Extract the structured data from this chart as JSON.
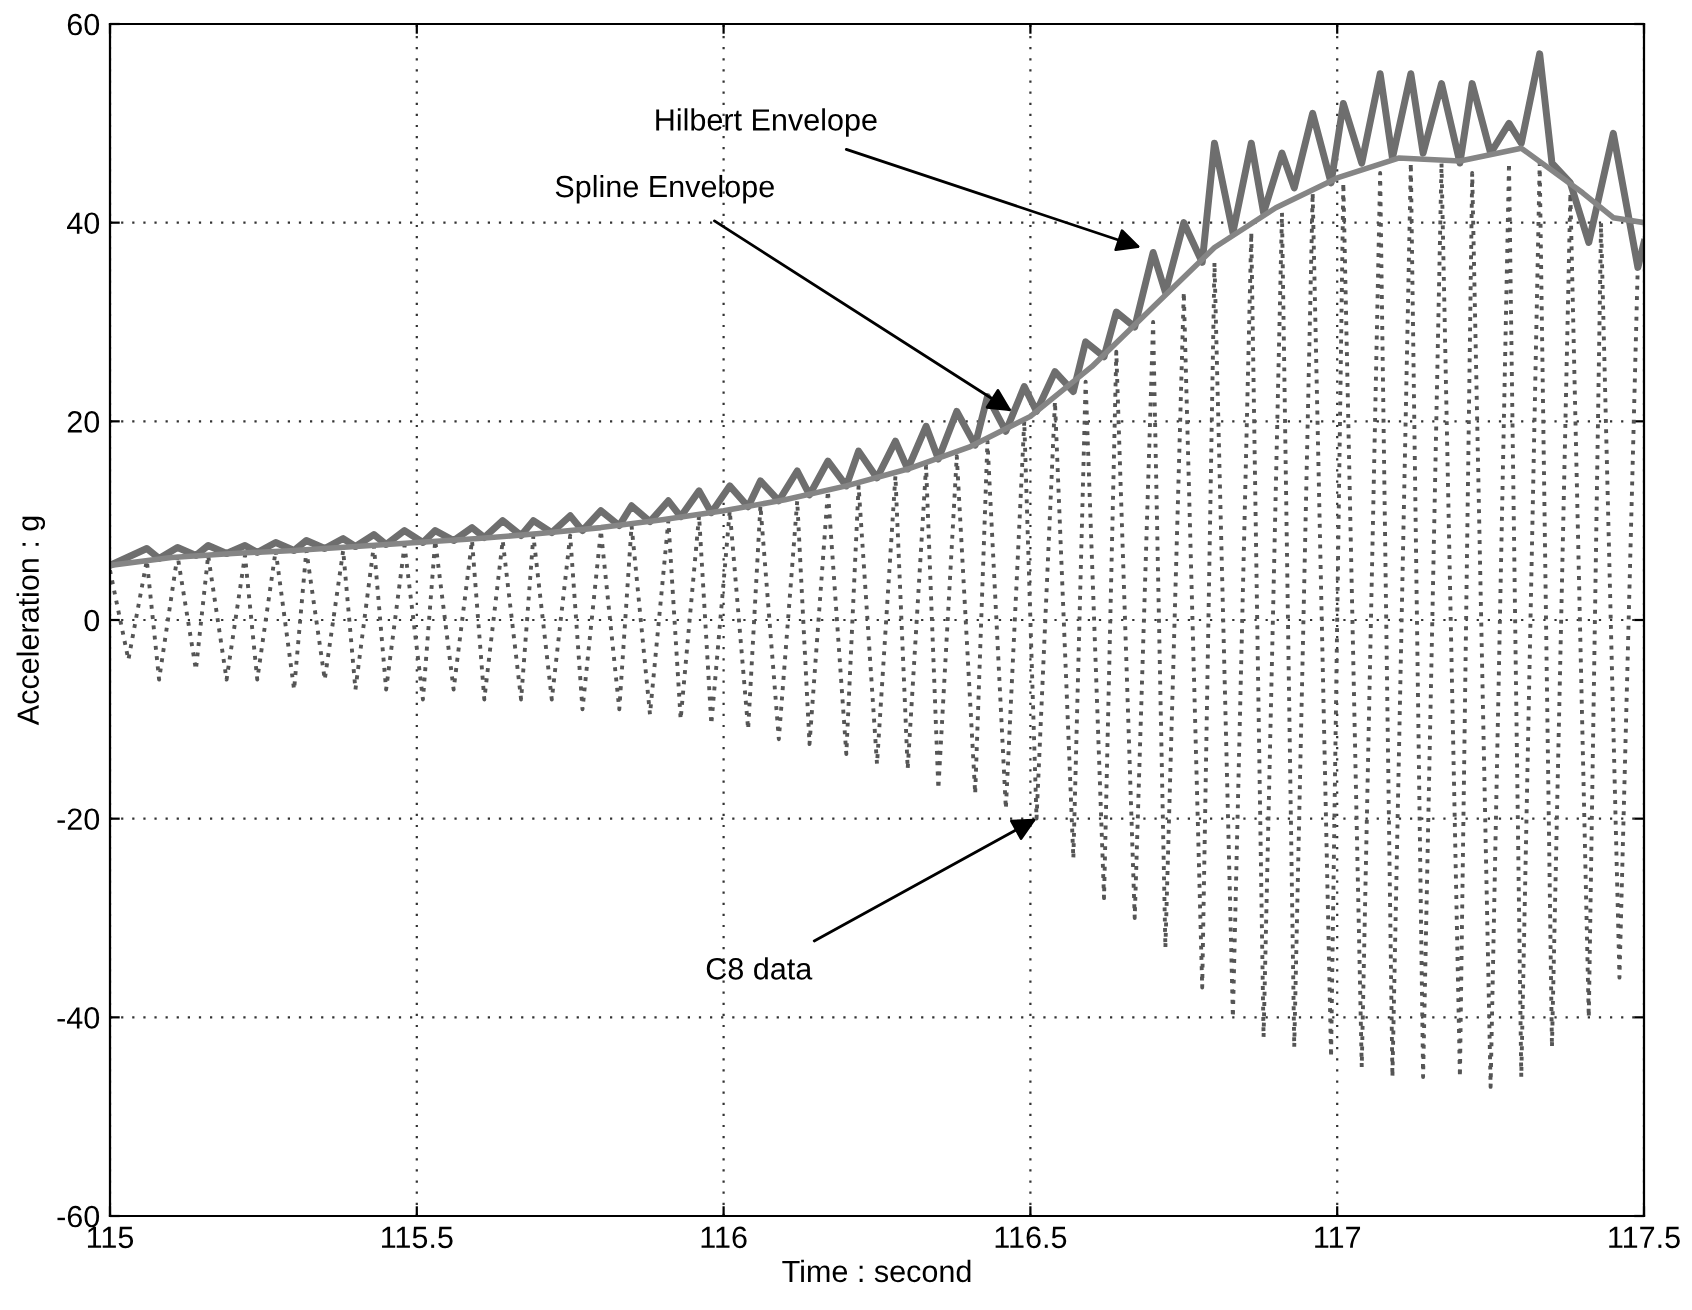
{
  "chart_data": {
    "type": "line",
    "xlabel": "Time : second",
    "ylabel": "Acceleration : g",
    "xlim": [
      115,
      117.5
    ],
    "ylim": [
      -60,
      60
    ],
    "xticks": [
      115,
      115.5,
      116,
      116.5,
      117,
      117.5
    ],
    "yticks": [
      -60,
      -40,
      -20,
      0,
      20,
      40,
      60
    ],
    "grid": true,
    "legend": false,
    "marker": "none",
    "series": [
      {
        "color": "#555555",
        "line_style": "dotted",
        "x": [
          115.0,
          115.03,
          115.06,
          115.08,
          115.11,
          115.14,
          115.16,
          115.19,
          115.22,
          115.24,
          115.27,
          115.3,
          115.32,
          115.35,
          115.38,
          115.4,
          115.43,
          115.45,
          115.48,
          115.51,
          115.53,
          115.56,
          115.59,
          115.61,
          115.64,
          115.67,
          115.69,
          115.72,
          115.75,
          115.77,
          115.8,
          115.83,
          115.85,
          115.88,
          115.91,
          115.93,
          115.96,
          115.98,
          116.01,
          116.04,
          116.06,
          116.09,
          116.12,
          116.14,
          116.17,
          116.2,
          116.22,
          116.25,
          116.28,
          116.3,
          116.33,
          116.35,
          116.38,
          116.41,
          116.43,
          116.46,
          116.49,
          116.51,
          116.54,
          116.57,
          116.59,
          116.62,
          116.64,
          116.67,
          116.7,
          116.72,
          116.75,
          116.78,
          116.8,
          116.83,
          116.86,
          116.88,
          116.91,
          116.93,
          116.96,
          116.99,
          117.01,
          117.04,
          117.07,
          117.09,
          117.12,
          117.14,
          117.17,
          117.2,
          117.22,
          117.25,
          117.28,
          117.3,
          117.33,
          117.35,
          117.38,
          117.41,
          117.43,
          117.46,
          117.49
        ],
        "values": [
          5,
          -4,
          6,
          -6,
          6.5,
          -5,
          6.5,
          -6,
          6.5,
          -6,
          7,
          -7,
          7,
          -6,
          7,
          -7,
          7.5,
          -7,
          7.5,
          -8,
          8,
          -7,
          8,
          -8,
          8,
          -8,
          8.5,
          -8,
          8.5,
          -9,
          9,
          -9,
          9.5,
          -9.5,
          10,
          -10,
          10.5,
          -10.5,
          11,
          -11,
          11.5,
          -12,
          12,
          -12.5,
          13,
          -13.5,
          13.5,
          -14.5,
          14.5,
          -15,
          15.5,
          -17,
          16.5,
          -17.5,
          18,
          -19,
          20,
          -20,
          22,
          -24,
          24,
          -28,
          27,
          -30,
          30,
          -33,
          33,
          -37,
          36,
          -40,
          39,
          -42,
          41,
          -43,
          43,
          -44,
          44,
          -45,
          45,
          -46,
          46,
          -46,
          46,
          -46,
          45,
          -47,
          46,
          -46,
          46,
          -43,
          43,
          -40,
          40,
          -36,
          36
        ]
      },
      {
        "color": "#6e6e6e",
        "line_style": "solid",
        "x": [
          115.0,
          115.06,
          115.08,
          115.11,
          115.14,
          115.16,
          115.19,
          115.22,
          115.24,
          115.27,
          115.3,
          115.32,
          115.35,
          115.38,
          115.4,
          115.43,
          115.45,
          115.48,
          115.51,
          115.53,
          115.56,
          115.59,
          115.61,
          115.64,
          115.67,
          115.69,
          115.72,
          115.75,
          115.77,
          115.8,
          115.83,
          115.85,
          115.88,
          115.91,
          115.93,
          115.96,
          115.98,
          116.01,
          116.04,
          116.06,
          116.09,
          116.12,
          116.14,
          116.17,
          116.2,
          116.22,
          116.25,
          116.28,
          116.3,
          116.33,
          116.35,
          116.38,
          116.41,
          116.43,
          116.46,
          116.49,
          116.51,
          116.54,
          116.57,
          116.59,
          116.62,
          116.64,
          116.67,
          116.7,
          116.72,
          116.75,
          116.78,
          116.8,
          116.83,
          116.86,
          116.88,
          116.91,
          116.93,
          116.96,
          116.99,
          117.01,
          117.04,
          117.07,
          117.09,
          117.12,
          117.14,
          117.17,
          117.2,
          117.22,
          117.25,
          117.28,
          117.3,
          117.33,
          117.35,
          117.38,
          117.41,
          117.45,
          117.49,
          117.5
        ],
        "values": [
          5.5,
          7.2,
          6.2,
          7.3,
          6.5,
          7.5,
          6.7,
          7.5,
          6.8,
          7.8,
          7.0,
          8.0,
          7.2,
          8.2,
          7.4,
          8.6,
          7.6,
          9.0,
          7.8,
          9.0,
          8.0,
          9.3,
          8.3,
          10.0,
          8.5,
          10.0,
          8.8,
          10.5,
          9.0,
          11.0,
          9.5,
          11.5,
          9.9,
          12.0,
          10.4,
          13.0,
          10.8,
          13.5,
          11.4,
          14.0,
          12.0,
          15.0,
          12.6,
          16.0,
          13.5,
          17.0,
          14.3,
          18.0,
          15.2,
          19.5,
          16.2,
          21.0,
          17.6,
          22.5,
          19.0,
          23.5,
          21.0,
          25.0,
          23.0,
          28.0,
          26.5,
          31.0,
          29.5,
          37.0,
          33.0,
          40.0,
          36.0,
          48.0,
          39.0,
          48.0,
          41.0,
          47.0,
          43.5,
          51.0,
          44.0,
          52.0,
          46.0,
          55.0,
          46.5,
          55.0,
          47.0,
          54.0,
          46.0,
          54.0,
          47.0,
          50.0,
          48.0,
          57.0,
          46.0,
          44.0,
          38.0,
          49.0,
          35.5,
          38.0
        ]
      },
      {
        "color": "#858585",
        "line_style": "solid",
        "x": [
          115.0,
          115.1,
          115.2,
          115.3,
          115.4,
          115.5,
          115.6,
          115.7,
          115.8,
          115.9,
          116.0,
          116.1,
          116.2,
          116.3,
          116.4,
          116.5,
          116.6,
          116.7,
          116.8,
          116.9,
          117.0,
          117.1,
          117.2,
          117.3,
          117.4,
          117.45,
          117.5
        ],
        "values": [
          5.5,
          6.3,
          6.7,
          7.0,
          7.4,
          7.8,
          8.2,
          8.7,
          9.3,
          10.1,
          11.0,
          12.1,
          13.5,
          15.2,
          17.4,
          20.5,
          25.5,
          31.5,
          37.5,
          41.5,
          44.5,
          46.5,
          46.2,
          47.5,
          43.0,
          40.5,
          40.0
        ]
      }
    ],
    "annotations": [
      {
        "text": "Hilbert Envelope",
        "x": 116.68,
        "y": 37.5
      },
      {
        "text": "Spline Envelope",
        "x": 116.47,
        "y": 21
      },
      {
        "text": "C8 data",
        "x": 116.51,
        "y": -20
      }
    ]
  }
}
